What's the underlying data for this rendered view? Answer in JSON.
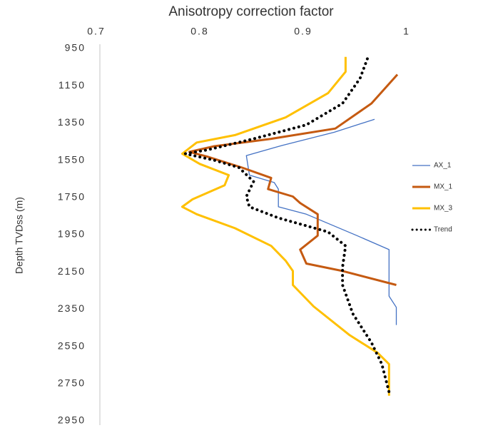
{
  "chart_data": {
    "type": "line",
    "orientation": "depth-down",
    "title": "Anisotropy correction factor",
    "y_label": "Depth TVDss (m)",
    "xlim": [
      0.7,
      1
    ],
    "xticks": [
      0.7,
      0.8,
      0.9,
      1
    ],
    "ylim": [
      950,
      2950
    ],
    "yticks": [
      950,
      1150,
      1350,
      1550,
      1750,
      1950,
      2150,
      2350,
      2550,
      2750,
      2950
    ],
    "y_inverted": true,
    "grid": false,
    "legend": "right",
    "series": [
      {
        "name": "AX_1",
        "color": "#4472c4",
        "width": 1.3,
        "dash": "solid",
        "x": [
          0.969,
          0.93,
          0.88,
          0.845,
          0.848,
          0.872,
          0.876,
          0.876,
          0.903,
          0.952,
          0.983,
          0.983,
          0.983,
          0.99,
          0.99
        ],
        "y": [
          1330,
          1400,
          1470,
          1525,
          1630,
          1670,
          1705,
          1800,
          1840,
          1955,
          2030,
          2145,
          2280,
          2340,
          2435
        ]
      },
      {
        "name": "MX_1",
        "color": "#c55a11",
        "width": 3,
        "dash": "solid",
        "x": [
          0.991,
          0.966,
          0.931,
          0.869,
          0.814,
          0.79,
          0.807,
          0.841,
          0.869,
          0.866,
          0.89,
          0.897,
          0.914,
          0.914,
          0.897,
          0.903,
          0.938,
          0.99
        ],
        "y": [
          1090,
          1245,
          1380,
          1435,
          1475,
          1505,
          1530,
          1590,
          1645,
          1705,
          1745,
          1780,
          1840,
          1955,
          2030,
          2105,
          2145,
          2220
        ]
      },
      {
        "name": "MX_3",
        "color": "#ffc000",
        "width": 3,
        "dash": "solid",
        "x": [
          0.941,
          0.941,
          0.924,
          0.883,
          0.834,
          0.797,
          0.783,
          0.8,
          0.828,
          0.824,
          0.793,
          0.783,
          0.797,
          0.834,
          0.869,
          0.883,
          0.89,
          0.89,
          0.91,
          0.945,
          0.972,
          0.983,
          0.983
        ],
        "y": [
          995,
          1075,
          1190,
          1320,
          1415,
          1455,
          1515,
          1570,
          1630,
          1685,
          1760,
          1800,
          1840,
          1915,
          2010,
          2090,
          2145,
          2220,
          2335,
          2490,
          2585,
          2645,
          2815
        ]
      },
      {
        "name": "Trend",
        "color": "#000000",
        "width": 4,
        "dash": "dotted",
        "x": [
          0.962,
          0.955,
          0.938,
          0.903,
          0.852,
          0.807,
          0.786,
          0.814,
          0.838,
          0.852,
          0.845,
          0.848,
          0.876,
          0.924,
          0.941,
          0.938,
          0.938,
          0.948,
          0.966,
          0.976,
          0.983
        ],
        "y": [
          1005,
          1110,
          1245,
          1360,
          1435,
          1495,
          1515,
          1550,
          1590,
          1665,
          1745,
          1800,
          1860,
          1935,
          2010,
          2125,
          2220,
          2375,
          2530,
          2645,
          2795
        ]
      }
    ]
  }
}
